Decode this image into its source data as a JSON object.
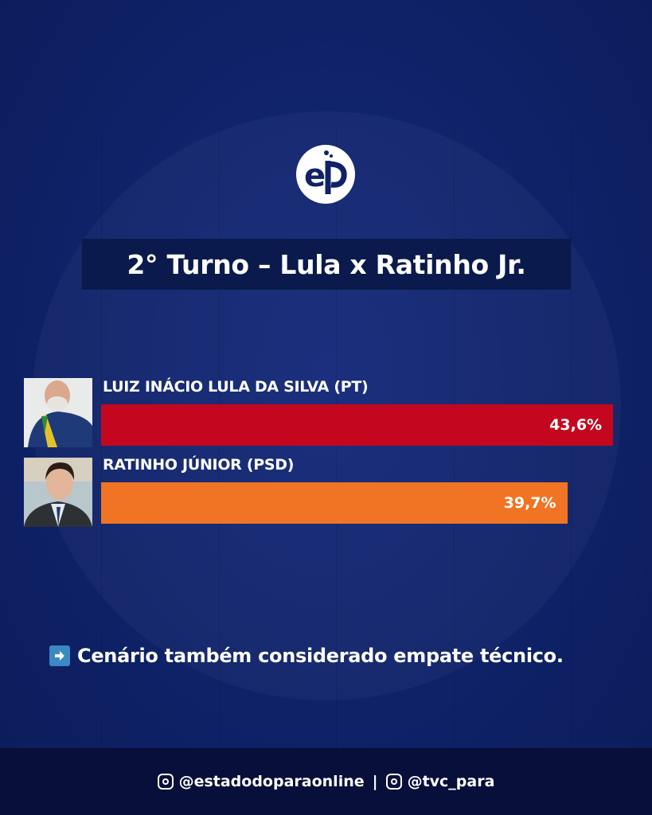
{
  "title": "2° Turno – Lula x Ratinho Jr.",
  "logo_text": "eP",
  "chart_data": {
    "type": "bar",
    "orientation": "horizontal",
    "title": "2° Turno – Lula x Ratinho Jr.",
    "categories": [
      "LUIZ INÁCIO LULA DA SILVA (PT)",
      "RATINHO JÚNIOR (PSD)"
    ],
    "values": [
      43.6,
      39.7
    ],
    "value_labels": [
      "43,6%",
      "39,7%"
    ],
    "colors": [
      "#c4071e",
      "#f07424"
    ],
    "unit": "%",
    "xlim": [
      0,
      50
    ],
    "grid": true
  },
  "note": {
    "icon": "right-arrow-icon",
    "text": "Cenário também considerado empate técnico."
  },
  "footer": {
    "handle1": "@estadodoparaonline",
    "separator": "|",
    "handle2": "@tvc_para",
    "icon": "instagram-icon"
  },
  "colors": {
    "background": "#0f2268",
    "title_box": "#0a1a4c",
    "footer": "#070f3a"
  }
}
